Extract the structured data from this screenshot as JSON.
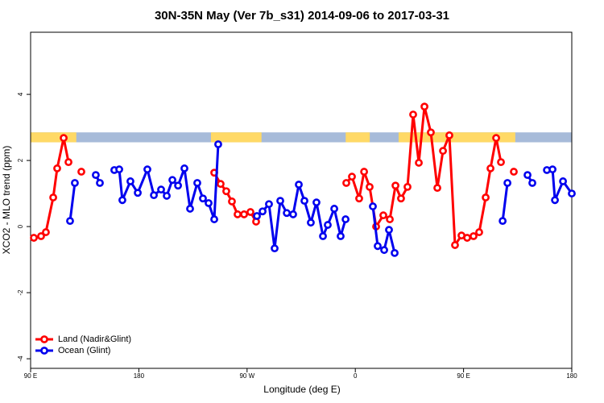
{
  "chart_data": {
    "type": "line",
    "title": "30N-35N May (Ver 7b_s31)   2014-09-06 to 2017-03-31",
    "xlabel": "Longitude (deg E)",
    "ylabel": "XCO2 - MLO trend (ppm)",
    "xlim": [
      90,
      540
    ],
    "xticks": [
      {
        "value": 90,
        "label": "90 E"
      },
      {
        "value": 180,
        "label": "180"
      },
      {
        "value": 270,
        "label": "90 W"
      },
      {
        "value": 360,
        "label": "0"
      },
      {
        "value": 450,
        "label": "90 E"
      },
      {
        "value": 540,
        "label": "180"
      }
    ],
    "ylim": [
      -4.29,
      5.88
    ],
    "yticks": [
      -4,
      -2,
      0,
      2,
      4
    ],
    "legend": "bottom-left",
    "land_mask": {
      "ylim": [
        2.55,
        2.85
      ],
      "land": [
        [
          90,
          128
        ],
        [
          240,
          282
        ],
        [
          352,
          372
        ],
        [
          396,
          493
        ]
      ],
      "land_color": "#ffd966",
      "ocean_color": "#a7bbd9"
    },
    "series": [
      {
        "name": "Land (Nadir&Glint)",
        "color": "#ff0000",
        "x": [
          92.7,
          98.7,
          102.7,
          108.8,
          112.1,
          117.5,
          121.5,
          null,
          132.2,
          null,
          242.7,
          248,
          252.7,
          257.4,
          262.1,
          267.5,
          272.8,
          277.5,
          null,
          352.5,
          357.2,
          363.2,
          367.3,
          371.9,
          377.3,
          383.3,
          388.7,
          393.4,
          398,
          403.4,
          408.1,
          412.8,
          417.5,
          422.8,
          428.2,
          432.9,
          438.2,
          442.9,
          448.3,
          453,
          458.3,
          463,
          468.4,
          472.4,
          477.1,
          481.1,
          null,
          491.8
        ],
        "values": [
          -0.34,
          -0.29,
          -0.17,
          0.88,
          1.76,
          2.68,
          1.95,
          null,
          1.66,
          null,
          1.63,
          1.29,
          1.07,
          0.76,
          0.37,
          0.37,
          0.44,
          0.15,
          null,
          1.32,
          1.51,
          0.85,
          1.66,
          1.2,
          0,
          0.34,
          0.22,
          1.24,
          0.85,
          1.2,
          3.39,
          1.93,
          3.63,
          2.85,
          1.17,
          2.29,
          2.76,
          -0.56,
          -0.27,
          -0.34,
          -0.29,
          -0.17,
          0.88,
          1.76,
          2.68,
          1.95,
          null,
          1.66
        ]
      },
      {
        "name": "Ocean (Glint)",
        "color": "#0000ee",
        "x": [
          122.8,
          126.8,
          null,
          144.2,
          147.6,
          null,
          159.6,
          163.7,
          166.3,
          173,
          179.1,
          187.1,
          192.5,
          198.5,
          203.2,
          207.9,
          212.6,
          217.9,
          222.6,
          228.6,
          233.3,
          238,
          242.7,
          246,
          null,
          278.2,
          282.9,
          288.2,
          292.9,
          297.6,
          303,
          308.3,
          313,
          317.7,
          323,
          327.7,
          333.1,
          337.1,
          342.5,
          347.8,
          351.9,
          null,
          374.6,
          378.6,
          384,
          388,
          392.7,
          null,
          482.5,
          486.5,
          null,
          503.2,
          507.2,
          null,
          519.3,
          524,
          526,
          532.7,
          540
        ],
        "values": [
          0.17,
          1.32,
          null,
          1.56,
          1.32,
          null,
          1.71,
          1.73,
          0.8,
          1.37,
          1.02,
          1.73,
          0.95,
          1.12,
          0.93,
          1.41,
          1.24,
          1.76,
          0.54,
          1.32,
          0.85,
          0.71,
          0.22,
          2.49,
          null,
          0.32,
          0.46,
          0.68,
          -0.66,
          0.78,
          0.41,
          0.37,
          1.27,
          0.78,
          0.12,
          0.73,
          -0.29,
          0.05,
          0.54,
          -0.29,
          0.22,
          null,
          0.61,
          -0.59,
          -0.71,
          -0.1,
          -0.8,
          null,
          0.17,
          1.32,
          null,
          1.56,
          1.32,
          null,
          1.71,
          1.73,
          0.8,
          1.37,
          1.0
        ]
      }
    ]
  }
}
